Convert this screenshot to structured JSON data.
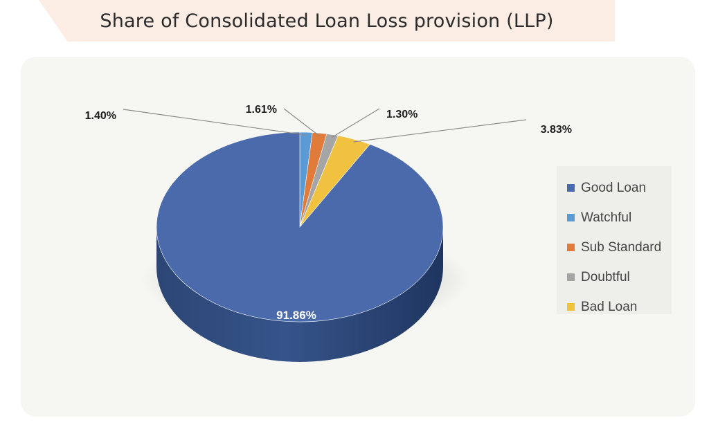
{
  "chart_data": {
    "type": "pie",
    "title": "Share of Consolidated Loan Loss provision (LLP)",
    "slices": [
      {
        "name": "Good Loan",
        "value": 91.86,
        "label": "91.86%",
        "color": "#4a6aab"
      },
      {
        "name": "Watchful",
        "value": 1.4,
        "label": "1.40%",
        "color": "#5b9bd5"
      },
      {
        "name": "Sub Standard",
        "value": 1.61,
        "label": "1.61%",
        "color": "#e07b39"
      },
      {
        "name": "Doubtful",
        "value": 1.3,
        "label": "1.30%",
        "color": "#a5a5a5"
      },
      {
        "name": "Bad Loan",
        "value": 3.83,
        "label": "3.83%",
        "color": "#f0c240"
      }
    ],
    "legend": {
      "position": "right"
    },
    "style": "3d"
  }
}
